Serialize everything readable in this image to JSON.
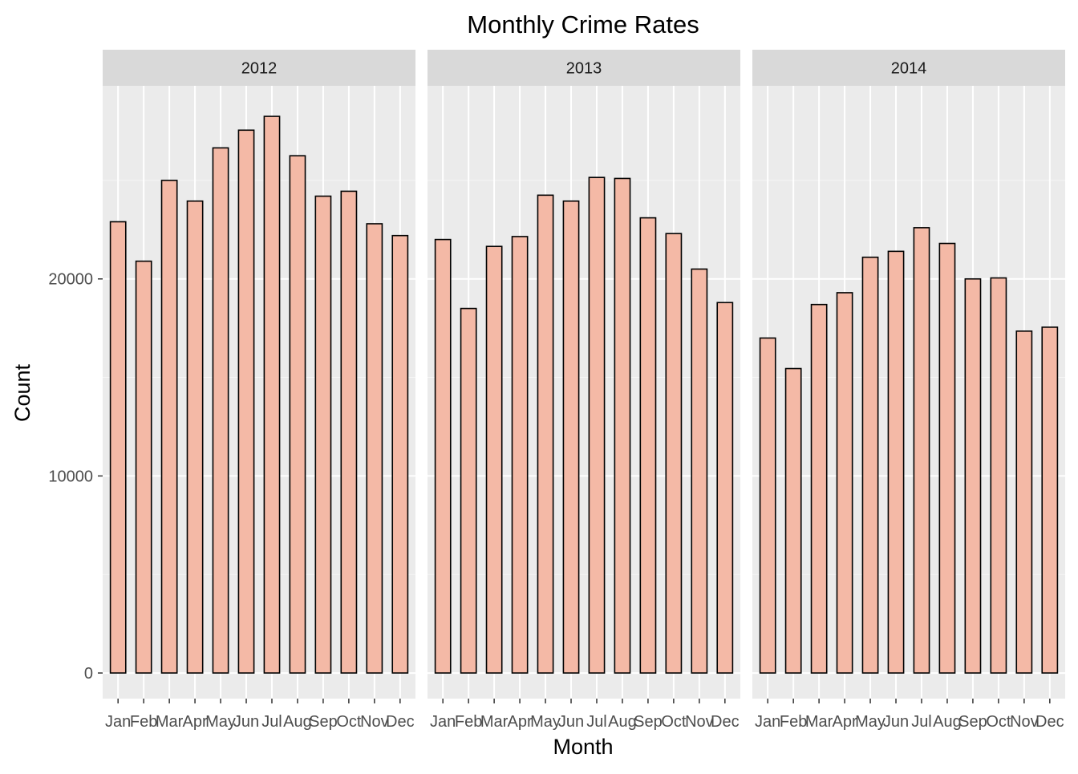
{
  "chart_data": {
    "type": "bar",
    "title": "Monthly Crime Rates",
    "xlabel": "Month",
    "ylabel": "Count",
    "ylim": [
      -1300,
      29800
    ],
    "yticks": [
      0,
      10000,
      20000
    ],
    "ytick_labels": [
      "0",
      "10000",
      "20000"
    ],
    "categories": [
      "Jan",
      "Feb",
      "Mar",
      "Apr",
      "May",
      "Jun",
      "Jul",
      "Aug",
      "Sep",
      "Oct",
      "Nov",
      "Dec"
    ],
    "grid": true,
    "legend": "none",
    "colors": {
      "bar_fill": "#f4b9a6",
      "bar_stroke": "#000000",
      "panel_bg": "#ebebeb",
      "strip_bg": "#d9d9d9",
      "grid_major": "#ffffff",
      "text": "#000000",
      "tick_text": "#4d4d4d"
    },
    "panels": [
      {
        "label": "2012",
        "values": [
          22900,
          20900,
          25000,
          23950,
          26650,
          27550,
          28250,
          26250,
          24200,
          24450,
          22800,
          22200
        ]
      },
      {
        "label": "2013",
        "values": [
          22000,
          18500,
          21650,
          22150,
          24250,
          23950,
          25150,
          25100,
          23100,
          22300,
          20500,
          18800
        ]
      },
      {
        "label": "2014",
        "values": [
          17000,
          15450,
          18700,
          19300,
          21100,
          21400,
          22600,
          21800,
          20000,
          20050,
          17350,
          17550
        ]
      }
    ]
  }
}
